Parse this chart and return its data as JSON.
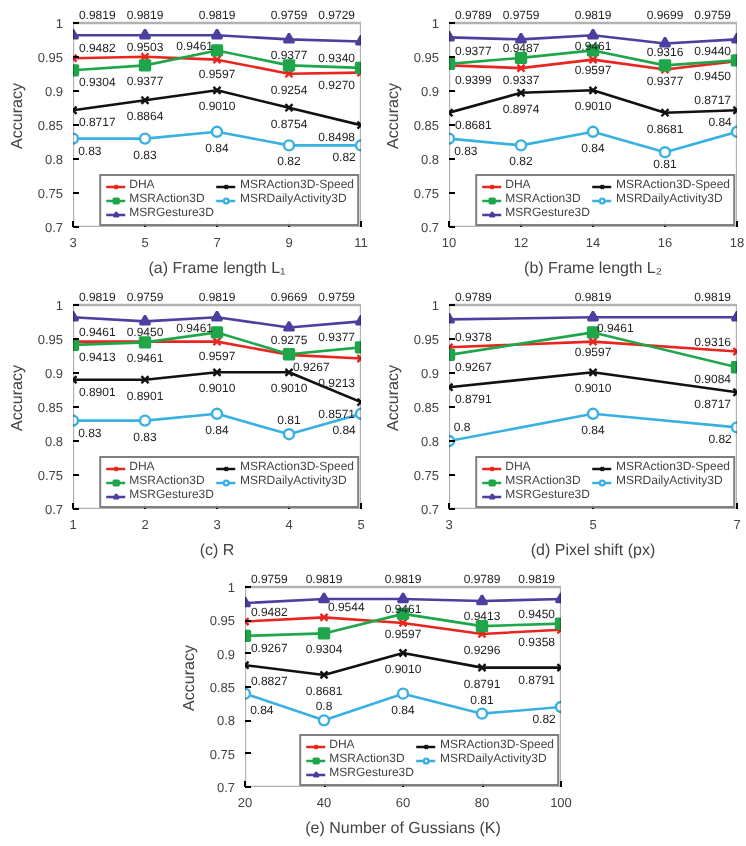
{
  "chart_data": [
    {
      "type": "line",
      "xlabel": "(a) Frame length L₁",
      "ylabel": "Accuracy",
      "x": [
        3,
        5,
        7,
        9,
        11
      ],
      "xlim": [
        3,
        11
      ],
      "xticks": [
        3,
        5,
        7,
        9,
        11
      ],
      "ylim": [
        0.7,
        1
      ],
      "yticks": [
        0.7,
        0.75,
        0.8,
        0.85,
        0.9,
        0.95,
        1
      ],
      "legend": "bottom right",
      "series": [
        {
          "name": "DHA",
          "color": "#e8251f",
          "marker": "cross",
          "values": [
            0.9482,
            0.9503,
            0.9461,
            0.9254,
            0.927
          ],
          "value_labels": [
            "0.9482",
            "0.9503",
            "0.9461",
            "0.9254",
            "0.9270"
          ]
        },
        {
          "name": "MSRAction3D",
          "color": "#1fa64a",
          "marker": "square",
          "values": [
            0.9304,
            0.9377,
            0.9597,
            0.9377,
            0.934
          ],
          "value_labels": [
            "0.9304",
            "0.9377",
            "0.9597",
            "0.9377",
            "0.9340"
          ]
        },
        {
          "name": "MSRGesture3D",
          "color": "#4b3fa0",
          "marker": "triangle",
          "values": [
            0.9819,
            0.9819,
            0.9819,
            0.9759,
            0.9729
          ],
          "value_labels": [
            "0.9819",
            "0.9819",
            "0.9819",
            "0.9759",
            "0.9729"
          ]
        },
        {
          "name": "MSRAction3D-Speed",
          "color": "#111111",
          "marker": "cross",
          "values": [
            0.8717,
            0.8864,
            0.901,
            0.8754,
            0.8498
          ],
          "value_labels": [
            "0.8717",
            "0.8864",
            "0.9010",
            "0.8754",
            "0.8498"
          ]
        },
        {
          "name": "MSRDailyActivity3D",
          "color": "#3ab0e0",
          "marker": "circle",
          "values": [
            0.83,
            0.83,
            0.84,
            0.82,
            0.82
          ],
          "value_labels": [
            "0.83",
            "0.83",
            "0.84",
            "0.82",
            "0.82"
          ]
        }
      ]
    },
    {
      "type": "line",
      "xlabel": "(b) Frame length L₂",
      "ylabel": "Accuracy",
      "x": [
        10,
        12,
        14,
        16,
        18
      ],
      "xlim": [
        10,
        18
      ],
      "xticks": [
        10,
        12,
        14,
        16,
        18
      ],
      "ylim": [
        0.7,
        1
      ],
      "yticks": [
        0.7,
        0.75,
        0.8,
        0.85,
        0.9,
        0.95,
        1
      ],
      "legend": "bottom right",
      "series": [
        {
          "name": "DHA",
          "color": "#e8251f",
          "marker": "cross",
          "values": [
            0.9377,
            0.9337,
            0.9461,
            0.9316,
            0.944
          ],
          "value_labels": [
            "0.9377",
            "0.9337",
            "0.9461",
            "0.9316",
            "0.9440"
          ]
        },
        {
          "name": "MSRAction3D",
          "color": "#1fa64a",
          "marker": "square",
          "values": [
            0.9399,
            0.9487,
            0.9597,
            0.9377,
            0.945
          ],
          "value_labels": [
            "0.9399",
            "0.9487",
            "0.9597",
            "0.9377",
            "0.9450"
          ]
        },
        {
          "name": "MSRGesture3D",
          "color": "#4b3fa0",
          "marker": "triangle",
          "values": [
            0.9789,
            0.9759,
            0.9819,
            0.9699,
            0.9759
          ],
          "value_labels": [
            "0.9789",
            "0.9759",
            "0.9819",
            "0.9699",
            "0.9759"
          ]
        },
        {
          "name": "MSRAction3D-Speed",
          "color": "#111111",
          "marker": "cross",
          "values": [
            0.8681,
            0.8974,
            0.901,
            0.8681,
            0.8717
          ],
          "value_labels": [
            "0.8681",
            "0.8974",
            "0.9010",
            "0.8681",
            "0.8717"
          ]
        },
        {
          "name": "MSRDailyActivity3D",
          "color": "#3ab0e0",
          "marker": "circle",
          "values": [
            0.83,
            0.82,
            0.84,
            0.81,
            0.84
          ],
          "value_labels": [
            "0.83",
            "0.82",
            "0.84",
            "0.81",
            "0.84"
          ]
        }
      ]
    },
    {
      "type": "line",
      "xlabel": "(c) R",
      "ylabel": "Accuracy",
      "x": [
        1,
        2,
        3,
        4,
        5
      ],
      "xlim": [
        1,
        5
      ],
      "xticks": [
        1,
        2,
        3,
        4,
        5
      ],
      "ylim": [
        0.7,
        1
      ],
      "yticks": [
        0.7,
        0.75,
        0.8,
        0.85,
        0.9,
        0.95,
        1
      ],
      "legend": "bottom right",
      "series": [
        {
          "name": "DHA",
          "color": "#e8251f",
          "marker": "cross",
          "values": [
            0.9461,
            0.9461,
            0.9461,
            0.9267,
            0.9213
          ],
          "value_labels": [
            "0.9461",
            "0.9461",
            "0.9461",
            "0.9267",
            "0.9213"
          ]
        },
        {
          "name": "MSRAction3D",
          "color": "#1fa64a",
          "marker": "square",
          "values": [
            0.9413,
            0.945,
            0.9597,
            0.9275,
            0.9377
          ],
          "value_labels": [
            "0.9413",
            "0.9450",
            "0.9597",
            "0.9275",
            "0.9377"
          ]
        },
        {
          "name": "MSRGesture3D",
          "color": "#4b3fa0",
          "marker": "triangle",
          "values": [
            0.9819,
            0.9759,
            0.9819,
            0.9669,
            0.9759
          ],
          "value_labels": [
            "0.9819",
            "0.9759",
            "0.9819",
            "0.9669",
            "0.9759"
          ]
        },
        {
          "name": "MSRAction3D-Speed",
          "color": "#111111",
          "marker": "cross",
          "values": [
            0.8901,
            0.8901,
            0.901,
            0.901,
            0.8571
          ],
          "value_labels": [
            "0.8901",
            "0.8901",
            "0.9010",
            "0.9010",
            "0.8571"
          ]
        },
        {
          "name": "MSRDailyActivity3D",
          "color": "#3ab0e0",
          "marker": "circle",
          "values": [
            0.83,
            0.83,
            0.84,
            0.81,
            0.84
          ],
          "value_labels": [
            "0.83",
            "0.83",
            "0.84",
            "0.81",
            "0.84"
          ]
        }
      ]
    },
    {
      "type": "line",
      "xlabel": "(d) Pixel shift (px)",
      "ylabel": "Accuracy",
      "x": [
        3,
        5,
        7
      ],
      "xlim": [
        3,
        7
      ],
      "xticks": [
        3,
        5,
        7
      ],
      "ylim": [
        0.7,
        1
      ],
      "yticks": [
        0.7,
        0.75,
        0.8,
        0.85,
        0.9,
        0.95,
        1
      ],
      "legend": "bottom right",
      "series": [
        {
          "name": "DHA",
          "color": "#e8251f",
          "marker": "cross",
          "values": [
            0.9378,
            0.9461,
            0.9316
          ],
          "value_labels": [
            "0.9378",
            "0.9461",
            "0.9316"
          ]
        },
        {
          "name": "MSRAction3D",
          "color": "#1fa64a",
          "marker": "square",
          "values": [
            0.9267,
            0.9597,
            0.9084
          ],
          "value_labels": [
            "0.9267",
            "0.9597",
            "0.9084"
          ]
        },
        {
          "name": "MSRGesture3D",
          "color": "#4b3fa0",
          "marker": "triangle",
          "values": [
            0.9789,
            0.9819,
            0.9819
          ],
          "value_labels": [
            "0.9789",
            "0.9819",
            "0.9819"
          ]
        },
        {
          "name": "MSRAction3D-Speed",
          "color": "#111111",
          "marker": "cross",
          "values": [
            0.8791,
            0.901,
            0.8717
          ],
          "value_labels": [
            "0.8791",
            "0.9010",
            "0.8717"
          ]
        },
        {
          "name": "MSRDailyActivity3D",
          "color": "#3ab0e0",
          "marker": "circle",
          "values": [
            0.8,
            0.84,
            0.82
          ],
          "value_labels": [
            "0.8",
            "0.84",
            "0.82"
          ]
        }
      ]
    },
    {
      "type": "line",
      "xlabel": "(e) Number of Gussians (K)",
      "ylabel": "Accuracy",
      "x": [
        20,
        40,
        60,
        80,
        100
      ],
      "xlim": [
        20,
        100
      ],
      "xticks": [
        20,
        40,
        60,
        80,
        100
      ],
      "ylim": [
        0.7,
        1
      ],
      "yticks": [
        0.7,
        0.75,
        0.8,
        0.85,
        0.9,
        0.95,
        1
      ],
      "legend": "bottom right",
      "series": [
        {
          "name": "DHA",
          "color": "#e8251f",
          "marker": "cross",
          "values": [
            0.9482,
            0.9544,
            0.9461,
            0.9296,
            0.9358
          ],
          "value_labels": [
            "0.9482",
            "0.9544",
            "0.9461",
            "0.9296",
            "0.9358"
          ]
        },
        {
          "name": "MSRAction3D",
          "color": "#1fa64a",
          "marker": "square",
          "values": [
            0.9267,
            0.9304,
            0.9597,
            0.9413,
            0.945
          ],
          "value_labels": [
            "0.9267",
            "0.9304",
            "0.9597",
            "0.9413",
            "0.9450"
          ]
        },
        {
          "name": "MSRGesture3D",
          "color": "#4b3fa0",
          "marker": "triangle",
          "values": [
            0.9759,
            0.9819,
            0.9819,
            0.9789,
            0.9819
          ],
          "value_labels": [
            "0.9759",
            "0.9819",
            "0.9819",
            "0.9789",
            "0.9819"
          ]
        },
        {
          "name": "MSRAction3D-Speed",
          "color": "#111111",
          "marker": "cross",
          "values": [
            0.8827,
            0.8681,
            0.901,
            0.8791,
            0.8791
          ],
          "value_labels": [
            "0.8827",
            "0.8681",
            "0.9010",
            "0.8791",
            "0.8791"
          ]
        },
        {
          "name": "MSRDailyActivity3D",
          "color": "#3ab0e0",
          "marker": "circle",
          "values": [
            0.84,
            0.8,
            0.84,
            0.81,
            0.82
          ],
          "value_labels": [
            "0.84",
            "0.8",
            "0.84",
            "0.81",
            "0.82"
          ]
        }
      ]
    }
  ]
}
